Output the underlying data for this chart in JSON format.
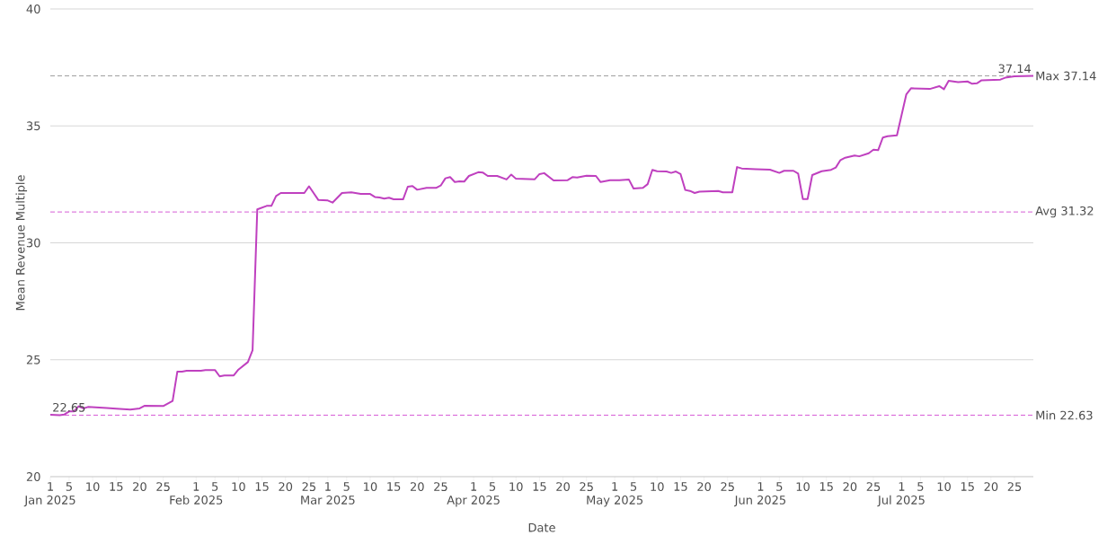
{
  "chart_data": {
    "type": "line",
    "xlabel": "Date",
    "ylabel": "Mean Revenue Multiple",
    "x": [
      "2025-01-01",
      "2025-01-03",
      "2025-01-04",
      "2025-01-05",
      "2025-01-06",
      "2025-01-07",
      "2025-01-08",
      "2025-01-09",
      "2025-01-13",
      "2025-01-15",
      "2025-01-18",
      "2025-01-20",
      "2025-01-21",
      "2025-01-25",
      "2025-01-27",
      "2025-01-28",
      "2025-01-29",
      "2025-01-30",
      "2025-02-02",
      "2025-02-03",
      "2025-02-05",
      "2025-02-06",
      "2025-02-07",
      "2025-02-09",
      "2025-02-10",
      "2025-02-12",
      "2025-02-13",
      "2025-02-14",
      "2025-02-16",
      "2025-02-17",
      "2025-02-18",
      "2025-02-19",
      "2025-02-24",
      "2025-02-25",
      "2025-02-27",
      "2025-03-01",
      "2025-03-02",
      "2025-03-04",
      "2025-03-06",
      "2025-03-08",
      "2025-03-10",
      "2025-03-11",
      "2025-03-12",
      "2025-03-13",
      "2025-03-14",
      "2025-03-15",
      "2025-03-17",
      "2025-03-18",
      "2025-03-19",
      "2025-03-20",
      "2025-03-22",
      "2025-03-24",
      "2025-03-25",
      "2025-03-26",
      "2025-03-27",
      "2025-03-28",
      "2025-03-29",
      "2025-03-30",
      "2025-03-31",
      "2025-04-02",
      "2025-04-03",
      "2025-04-04",
      "2025-04-06",
      "2025-04-08",
      "2025-04-09",
      "2025-04-10",
      "2025-04-14",
      "2025-04-15",
      "2025-04-16",
      "2025-04-18",
      "2025-04-21",
      "2025-04-22",
      "2025-04-23",
      "2025-04-25",
      "2025-04-27",
      "2025-04-28",
      "2025-04-30",
      "2025-05-02",
      "2025-05-04",
      "2025-05-05",
      "2025-05-07",
      "2025-05-08",
      "2025-05-09",
      "2025-05-10",
      "2025-05-12",
      "2025-05-13",
      "2025-05-14",
      "2025-05-15",
      "2025-05-16",
      "2025-05-17",
      "2025-05-18",
      "2025-05-19",
      "2025-05-23",
      "2025-05-24",
      "2025-05-26",
      "2025-05-27",
      "2025-05-28",
      "2025-05-31",
      "2025-06-03",
      "2025-06-05",
      "2025-06-06",
      "2025-06-08",
      "2025-06-09",
      "2025-06-10",
      "2025-06-11",
      "2025-06-12",
      "2025-06-14",
      "2025-06-16",
      "2025-06-17",
      "2025-06-18",
      "2025-06-19",
      "2025-06-21",
      "2025-06-22",
      "2025-06-24",
      "2025-06-25",
      "2025-06-26",
      "2025-06-27",
      "2025-06-28",
      "2025-06-30",
      "2025-07-02",
      "2025-07-03",
      "2025-07-07",
      "2025-07-09",
      "2025-07-10",
      "2025-07-11",
      "2025-07-13",
      "2025-07-15",
      "2025-07-16",
      "2025-07-17",
      "2025-07-18",
      "2025-07-22",
      "2025-07-23",
      "2025-07-25",
      "2025-07-29"
    ],
    "values": [
      22.65,
      22.63,
      22.66,
      22.79,
      22.79,
      23.01,
      22.92,
      22.98,
      22.94,
      22.91,
      22.87,
      22.92,
      23.03,
      23.02,
      23.24,
      24.49,
      24.49,
      24.53,
      24.53,
      24.56,
      24.56,
      24.29,
      24.33,
      24.33,
      24.58,
      24.9,
      25.41,
      31.43,
      31.58,
      31.58,
      32.0,
      32.13,
      32.13,
      32.42,
      31.83,
      31.81,
      31.72,
      32.13,
      32.16,
      32.09,
      32.09,
      31.96,
      31.94,
      31.89,
      31.93,
      31.86,
      31.86,
      32.4,
      32.43,
      32.27,
      32.35,
      32.35,
      32.45,
      32.76,
      32.81,
      32.6,
      32.63,
      32.62,
      32.86,
      33.02,
      33.0,
      32.86,
      32.86,
      32.71,
      32.92,
      32.74,
      32.72,
      32.94,
      32.98,
      32.67,
      32.68,
      32.81,
      32.79,
      32.87,
      32.86,
      32.6,
      32.68,
      32.68,
      32.71,
      32.32,
      32.35,
      32.51,
      33.12,
      33.06,
      33.05,
      32.99,
      33.05,
      32.94,
      32.26,
      32.22,
      32.13,
      32.19,
      32.22,
      32.16,
      32.16,
      33.24,
      33.18,
      33.15,
      33.13,
      32.99,
      33.08,
      33.08,
      32.96,
      31.87,
      31.87,
      32.9,
      33.06,
      33.12,
      33.22,
      33.54,
      33.64,
      33.73,
      33.7,
      33.83,
      33.98,
      33.96,
      34.5,
      34.56,
      34.6,
      36.35,
      36.61,
      36.58,
      36.7,
      36.57,
      36.93,
      36.87,
      36.9,
      36.8,
      36.82,
      36.95,
      36.98,
      37.06,
      37.12,
      37.14
    ],
    "color": "#bf40bf",
    "marker": "none",
    "grid": "y",
    "xlim": [
      "2025-01-01",
      "2025-07-29"
    ],
    "xticks": [
      {
        "value": "2025-01-01",
        "label": "1\nJan 2025"
      },
      {
        "value": "2025-01-05",
        "label": "5"
      },
      {
        "value": "2025-01-10",
        "label": "10"
      },
      {
        "value": "2025-01-15",
        "label": "15"
      },
      {
        "value": "2025-01-20",
        "label": "20"
      },
      {
        "value": "2025-01-25",
        "label": "25"
      },
      {
        "value": "2025-02-01",
        "label": "1\nFeb 2025"
      },
      {
        "value": "2025-02-05",
        "label": "5"
      },
      {
        "value": "2025-02-10",
        "label": "10"
      },
      {
        "value": "2025-02-15",
        "label": "15"
      },
      {
        "value": "2025-02-20",
        "label": "20"
      },
      {
        "value": "2025-02-25",
        "label": "25"
      },
      {
        "value": "2025-03-01",
        "label": "1\nMar 2025"
      },
      {
        "value": "2025-03-05",
        "label": "5"
      },
      {
        "value": "2025-03-10",
        "label": "10"
      },
      {
        "value": "2025-03-15",
        "label": "15"
      },
      {
        "value": "2025-03-20",
        "label": "20"
      },
      {
        "value": "2025-03-25",
        "label": "25"
      },
      {
        "value": "2025-04-01",
        "label": "1\nApr 2025"
      },
      {
        "value": "2025-04-05",
        "label": "5"
      },
      {
        "value": "2025-04-10",
        "label": "10"
      },
      {
        "value": "2025-04-15",
        "label": "15"
      },
      {
        "value": "2025-04-20",
        "label": "20"
      },
      {
        "value": "2025-04-25",
        "label": "25"
      },
      {
        "value": "2025-05-01",
        "label": "1\nMay 2025"
      },
      {
        "value": "2025-05-05",
        "label": "5"
      },
      {
        "value": "2025-05-10",
        "label": "10"
      },
      {
        "value": "2025-05-15",
        "label": "15"
      },
      {
        "value": "2025-05-20",
        "label": "20"
      },
      {
        "value": "2025-05-25",
        "label": "25"
      },
      {
        "value": "2025-06-01",
        "label": "1\nJun 2025"
      },
      {
        "value": "2025-06-05",
        "label": "5"
      },
      {
        "value": "2025-06-10",
        "label": "10"
      },
      {
        "value": "2025-06-15",
        "label": "15"
      },
      {
        "value": "2025-06-20",
        "label": "20"
      },
      {
        "value": "2025-06-25",
        "label": "25"
      },
      {
        "value": "2025-07-01",
        "label": "1\nJul 2025"
      },
      {
        "value": "2025-07-05",
        "label": "5"
      },
      {
        "value": "2025-07-10",
        "label": "10"
      },
      {
        "value": "2025-07-15",
        "label": "15"
      },
      {
        "value": "2025-07-20",
        "label": "20"
      },
      {
        "value": "2025-07-25",
        "label": "25"
      }
    ],
    "ylim": [
      20,
      40
    ],
    "yticks": [
      20,
      25,
      30,
      35,
      40
    ],
    "ref_lines": [
      {
        "axis": "y",
        "value": 37.14,
        "label": "Max 37.14",
        "color": "#888888",
        "line_style": "dashed"
      },
      {
        "axis": "y",
        "value": 31.32,
        "label": "Avg 31.32",
        "color": "#cc33cc",
        "line_style": "dashed"
      },
      {
        "axis": "y",
        "value": 22.63,
        "label": "Min 22.63",
        "color": "#cc33cc",
        "line_style": "dashed"
      }
    ],
    "annotations": [
      {
        "text": "37.14",
        "x": "2025-07-29",
        "y": 37.14
      },
      {
        "text": "22.65",
        "x": "2025-01-01",
        "y": 22.65
      }
    ]
  }
}
